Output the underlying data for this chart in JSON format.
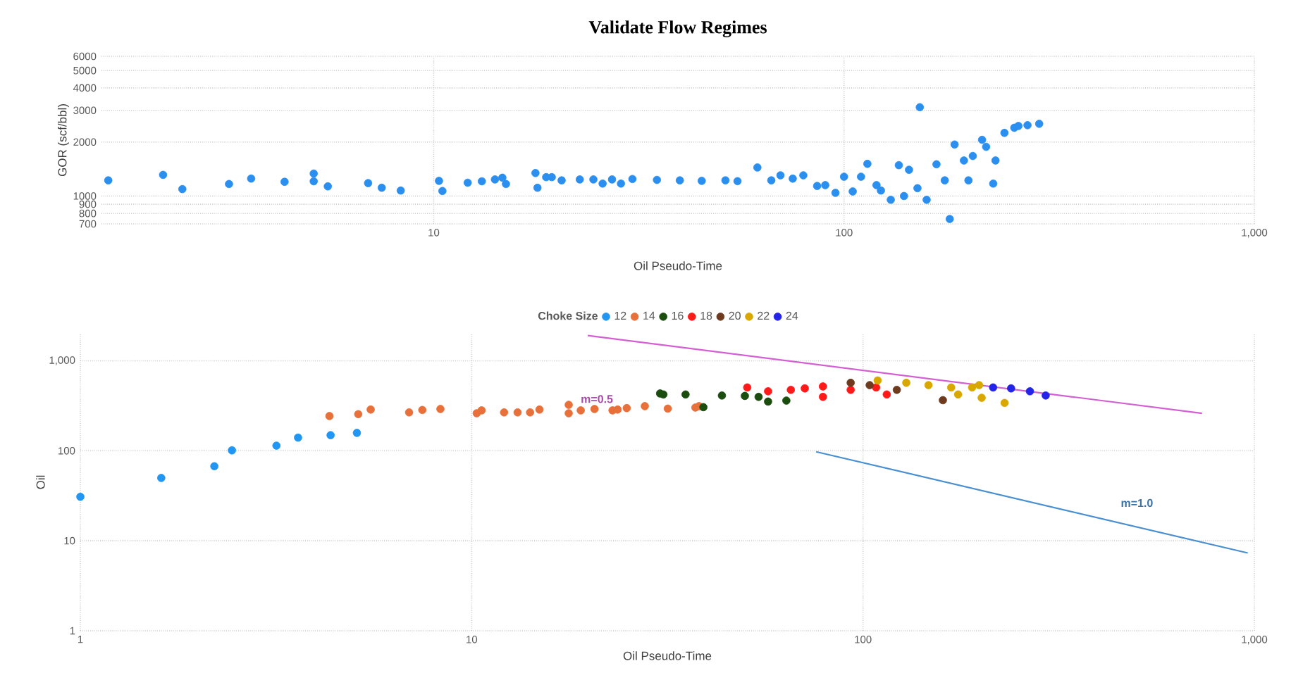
{
  "chart_data": [
    {
      "type": "scatter",
      "title": "Validate Flow Regimes",
      "xlabel": "Oil Pseudo-Time",
      "ylabel": "GOR (scf/bbl)",
      "log": "xy",
      "grid": true,
      "marker": "circle",
      "xlim": [
        1.55,
        1000
      ],
      "ylim": [
        700,
        6000
      ],
      "xticks": [
        10,
        100,
        {
          "value": 1000,
          "label": "1,000"
        }
      ],
      "yticks": [
        700,
        800,
        900,
        1000,
        2000,
        3000,
        4000,
        5000,
        6000
      ],
      "series": [
        {
          "color": "#2b8ff0",
          "x": [
            1.61,
            2.19,
            2.44,
            3.17,
            3.59,
            4.33,
            5.1,
            5.1,
            5.52,
            6.92,
            7.47,
            8.31,
            10.3,
            10.5,
            12.1,
            13.1,
            14.1,
            14.7,
            15.0,
            17.7,
            17.9,
            18.8,
            19.4,
            20.5,
            22.7,
            24.5,
            25.8,
            27.2,
            28.6,
            30.5,
            35,
            39.8,
            45,
            51.4,
            55,
            61.5,
            66.5,
            70,
            75,
            79.6,
            86,
            90,
            95.3,
            100,
            105,
            110,
            114,
            120,
            123,
            130,
            136,
            140,
            144,
            151,
            153,
            159,
            168,
            176,
            181,
            186,
            196,
            201,
            206,
            217,
            222,
            231,
            234,
            246,
            260,
            266,
            280,
            299
          ],
          "values": [
            1222,
            1312,
            1093,
            1167,
            1251,
            1200,
            1334,
            1208,
            1132,
            1180,
            1112,
            1073,
            1215,
            1067,
            1186,
            1208,
            1237,
            1265,
            1167,
            1343,
            1112,
            1274,
            1274,
            1222,
            1237,
            1237,
            1173,
            1237,
            1173,
            1244,
            1230,
            1222,
            1215,
            1222,
            1210,
            1442,
            1222,
            1304,
            1250,
            1304,
            1138,
            1150,
            1042,
            1281,
            1060,
            1281,
            1511,
            1150,
            1073,
            953,
            1485,
            1000,
            1400,
            1106,
            3124,
            953,
            1503,
            1222,
            745,
            1936,
            1577,
            1222,
            1671,
            2056,
            1880,
            1173,
            1577,
            2248,
            2400,
            2455,
            2480,
            2525
          ]
        }
      ]
    },
    {
      "type": "scatter",
      "xlabel": "Oil Pseudo-Time",
      "ylabel": "Oil",
      "log": "xy",
      "grid": true,
      "marker": "circle",
      "legend": "top",
      "legend_title": "Choke Size",
      "xlim": [
        1,
        1000
      ],
      "ylim": [
        1,
        2000
      ],
      "xticks": [
        1,
        10,
        100,
        {
          "value": 1000,
          "label": "1,000"
        }
      ],
      "yticks": [
        1,
        10,
        100,
        {
          "value": 1000,
          "label": "1,000"
        }
      ],
      "annotations": [
        "m=0.5",
        "m=1.0"
      ],
      "series": [
        {
          "name": "12",
          "color": "#2196f3",
          "x": [
            1.0,
            1.61,
            2.2,
            2.44,
            3.17,
            3.6,
            4.36,
            5.09
          ],
          "values": [
            30.8,
            49.9,
            67.3,
            101,
            114,
            140,
            149,
            158
          ]
        },
        {
          "name": "14",
          "color": "#e8703a",
          "x": [
            4.33,
            5.13,
            5.52,
            6.92,
            7.48,
            8.32,
            10.3,
            10.6,
            12.1,
            13.1,
            14.1,
            14.9,
            17.7,
            17.7,
            19.0,
            20.6,
            22.9,
            23.6,
            24.9,
            27.7,
            31.7,
            37.3,
            38.1
          ],
          "values": [
            243,
            255,
            287,
            267,
            284,
            291,
            261,
            281,
            267,
            267,
            267,
            287,
            324,
            261,
            281,
            291,
            281,
            287,
            298,
            313,
            294,
            302,
            313
          ]
        },
        {
          "name": "16",
          "color": "#1b4d0e",
          "x": [
            30.3,
            30.9,
            35.2,
            39.1,
            43.6,
            49.9,
            54.1,
            57.2,
            63.7
          ],
          "values": [
            433,
            422,
            422,
            305,
            411,
            407,
            397,
            352,
            361
          ]
        },
        {
          "name": "18",
          "color": "#ff1a1a",
          "x": [
            50.6,
            57.2,
            65.4,
            71.0,
            79.0,
            79.0,
            93.0,
            108,
            115
          ],
          "values": [
            505,
            458,
            475,
            493,
            518,
            397,
            475,
            505,
            422
          ]
        },
        {
          "name": "20",
          "color": "#6e3b1f",
          "x": [
            93.0,
            104,
            122,
            160
          ],
          "values": [
            569,
            536,
            475,
            365
          ]
        },
        {
          "name": "22",
          "color": "#d8a800",
          "x": [
            109,
            129,
            147,
            168,
            175,
            190,
            198,
            201,
            230
          ],
          "values": [
            604,
            569,
            536,
            505,
            422,
            505,
            536,
            388,
            340
          ]
        },
        {
          "name": "24",
          "color": "#2424e8",
          "x": [
            215,
            239,
            267,
            293
          ],
          "values": [
            505,
            493,
            458,
            411
          ]
        },
        {
          "type": "line",
          "color": "#d35fd3",
          "line_style": "solid",
          "marker": "none",
          "x": [
            19.8,
            735
          ],
          "values": [
            1909,
            261
          ]
        },
        {
          "type": "line",
          "color": "#4a8fd0",
          "line_style": "solid",
          "marker": "none",
          "x": [
            75.9,
            962
          ],
          "values": [
            97.5,
            7.31
          ]
        }
      ]
    }
  ]
}
